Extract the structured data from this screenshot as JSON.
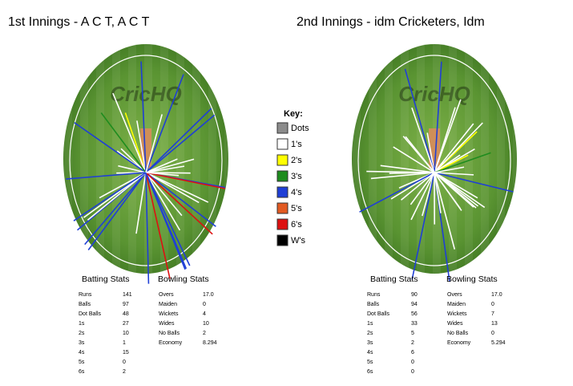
{
  "key": {
    "title": "Key:",
    "items": [
      {
        "label": "Dots",
        "color": "#8c8c8c"
      },
      {
        "label": "1's",
        "color": "#ffffff"
      },
      {
        "label": "2's",
        "color": "#ffff00"
      },
      {
        "label": "3's",
        "color": "#1e8c1e"
      },
      {
        "label": "4's",
        "color": "#1f3fd6"
      },
      {
        "label": "5's",
        "color": "#e25a22"
      },
      {
        "label": "6's",
        "color": "#dd1111"
      },
      {
        "label": "W's",
        "color": "#000000"
      }
    ]
  },
  "innings": [
    {
      "title": "1st Innings - A C T, A C T",
      "watermark": "CricHQ",
      "batting": {
        "title": "Batting Stats",
        "rows": [
          [
            "Runs",
            141
          ],
          [
            "Balls",
            97
          ],
          [
            "Dot Balls",
            48
          ],
          [
            "1s",
            27
          ],
          [
            "2s",
            10
          ],
          [
            "3s",
            1
          ],
          [
            "4s",
            15
          ],
          [
            "5s",
            0
          ],
          [
            "6s",
            2
          ]
        ]
      },
      "bowling": {
        "title": "Bowling Stats",
        "rows": [
          [
            "Overs",
            "17.0"
          ],
          [
            "Maiden",
            0
          ],
          [
            "Wickets",
            4
          ],
          [
            "Wides",
            10
          ],
          [
            "No Balls",
            2
          ],
          [
            "Economy",
            8.294
          ]
        ]
      }
    },
    {
      "title": "2nd Innings - idm Cricketers, Idm",
      "watermark": "CricHQ",
      "batting": {
        "title": "Batting Stats",
        "rows": [
          [
            "Runs",
            90
          ],
          [
            "Balls",
            94
          ],
          [
            "Dot Balls",
            56
          ],
          [
            "1s",
            33
          ],
          [
            "2s",
            5
          ],
          [
            "3s",
            2
          ],
          [
            "4s",
            6
          ],
          [
            "5s",
            0
          ],
          [
            "6s",
            0
          ]
        ]
      },
      "bowling": {
        "title": "Bowling Stats",
        "rows": [
          [
            "Overs",
            "17.0"
          ],
          [
            "Maiden",
            0
          ],
          [
            "Wickets",
            7
          ],
          [
            "Wides",
            13
          ],
          [
            "No Balls",
            0
          ],
          [
            "Economy",
            5.294
          ]
        ]
      }
    }
  ]
}
